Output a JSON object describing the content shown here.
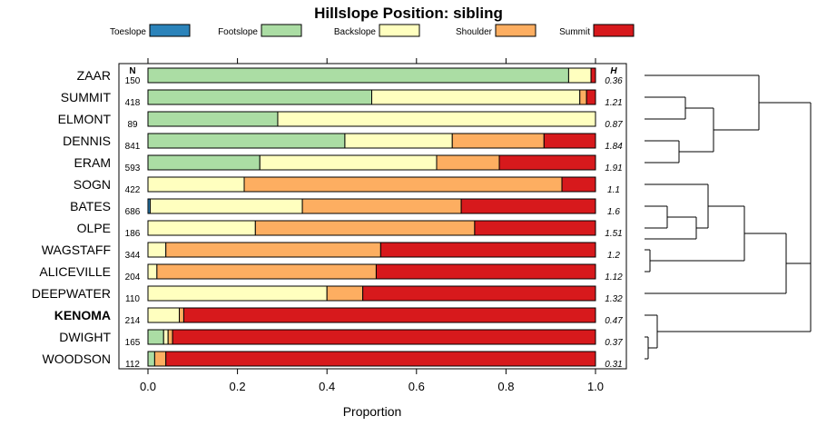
{
  "chart_data": {
    "type": "stacked-bar-horizontal",
    "title": "Hillslope Position: sibling",
    "xlabel": "Proportion",
    "xlim": [
      0,
      1
    ],
    "xticks": [
      "0.0",
      "0.2",
      "0.4",
      "0.6",
      "0.8",
      "1.0"
    ],
    "n_header": "N",
    "h_header": "H",
    "classes": [
      {
        "name": "Toeslope",
        "color": "#2b83ba"
      },
      {
        "name": "Footslope",
        "color": "#abdda4"
      },
      {
        "name": "Backslope",
        "color": "#ffffbf"
      },
      {
        "name": "Shoulder",
        "color": "#fdae61"
      },
      {
        "name": "Summit",
        "color": "#d7191c"
      }
    ],
    "rows": [
      {
        "label": "ZAAR",
        "n": "150",
        "h": "0.36",
        "bold": false,
        "values": [
          0.0,
          0.94,
          0.05,
          0.0,
          0.01
        ]
      },
      {
        "label": "SUMMIT",
        "n": "418",
        "h": "1.21",
        "bold": false,
        "values": [
          0.0,
          0.5,
          0.465,
          0.015,
          0.02
        ]
      },
      {
        "label": "ELMONT",
        "n": "89",
        "h": "0.87",
        "bold": false,
        "values": [
          0.0,
          0.29,
          0.71,
          0.0,
          0.0
        ]
      },
      {
        "label": "DENNIS",
        "n": "841",
        "h": "1.84",
        "bold": false,
        "values": [
          0.0,
          0.44,
          0.24,
          0.205,
          0.115
        ]
      },
      {
        "label": "ERAM",
        "n": "593",
        "h": "1.91",
        "bold": false,
        "values": [
          0.0,
          0.25,
          0.395,
          0.14,
          0.215
        ]
      },
      {
        "label": "SOGN",
        "n": "422",
        "h": "1.1",
        "bold": false,
        "values": [
          0.0,
          0.0,
          0.215,
          0.71,
          0.075
        ]
      },
      {
        "label": "BATES",
        "n": "686",
        "h": "1.6",
        "bold": false,
        "values": [
          0.005,
          0.0,
          0.34,
          0.355,
          0.3
        ]
      },
      {
        "label": "OLPE",
        "n": "186",
        "h": "1.51",
        "bold": false,
        "values": [
          0.0,
          0.0,
          0.24,
          0.49,
          0.27
        ]
      },
      {
        "label": "WAGSTAFF",
        "n": "344",
        "h": "1.2",
        "bold": false,
        "values": [
          0.0,
          0.0,
          0.04,
          0.48,
          0.48
        ]
      },
      {
        "label": "ALICEVILLE",
        "n": "204",
        "h": "1.12",
        "bold": false,
        "values": [
          0.0,
          0.0,
          0.02,
          0.49,
          0.49
        ]
      },
      {
        "label": "DEEPWATER",
        "n": "110",
        "h": "1.32",
        "bold": false,
        "values": [
          0.0,
          0.0,
          0.4,
          0.08,
          0.52
        ]
      },
      {
        "label": "KENOMA",
        "n": "214",
        "h": "0.47",
        "bold": true,
        "values": [
          0.0,
          0.0,
          0.07,
          0.01,
          0.92
        ]
      },
      {
        "label": "DWIGHT",
        "n": "165",
        "h": "0.37",
        "bold": false,
        "values": [
          0.0,
          0.035,
          0.01,
          0.01,
          0.945
        ]
      },
      {
        "label": "WOODSON",
        "n": "112",
        "h": "0.31",
        "bold": false,
        "values": [
          0.0,
          0.015,
          0.0,
          0.025,
          0.96
        ]
      }
    ]
  }
}
